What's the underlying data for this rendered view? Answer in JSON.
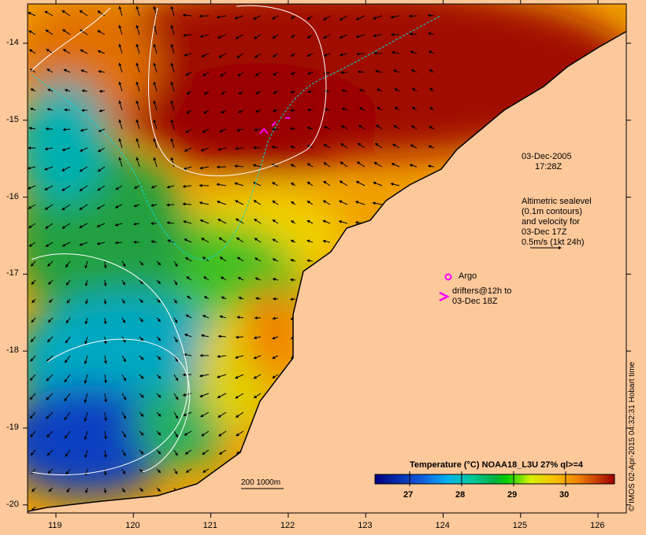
{
  "map": {
    "lon_ticks": [
      "119",
      "120",
      "121",
      "122",
      "123",
      "124",
      "125",
      "126"
    ],
    "lat_ticks": [
      "-14",
      "-15",
      "-16",
      "-17",
      "-18",
      "-19",
      "-20"
    ],
    "date": "03-Dec-2005",
    "time": "17:28Z",
    "legend_lines": [
      "Altimetric sealevel",
      "(0.1m contours)",
      "and velocity for",
      "03-Dec 17Z",
      "0.5m/s (1kt 24h)"
    ],
    "argo_label": "Argo",
    "drifters_lines": [
      "drifters@12h to",
      "03-Dec 18Z"
    ],
    "scale_label": "200  1000m",
    "copyright": "© IMOS 02-Apr-2015 04:32:31  Hobart time",
    "colors": {
      "land": "#fdc99b",
      "argo": "#ff00ff",
      "contour": "#ffffff",
      "isobath": "#00e0e0"
    }
  },
  "colorbar": {
    "title": "Temperature (°C) NOAA18_L3U 27% ql>=4",
    "ticks": [
      "27",
      "28",
      "29",
      "30"
    ],
    "range": [
      26.4,
      30.8
    ]
  }
}
